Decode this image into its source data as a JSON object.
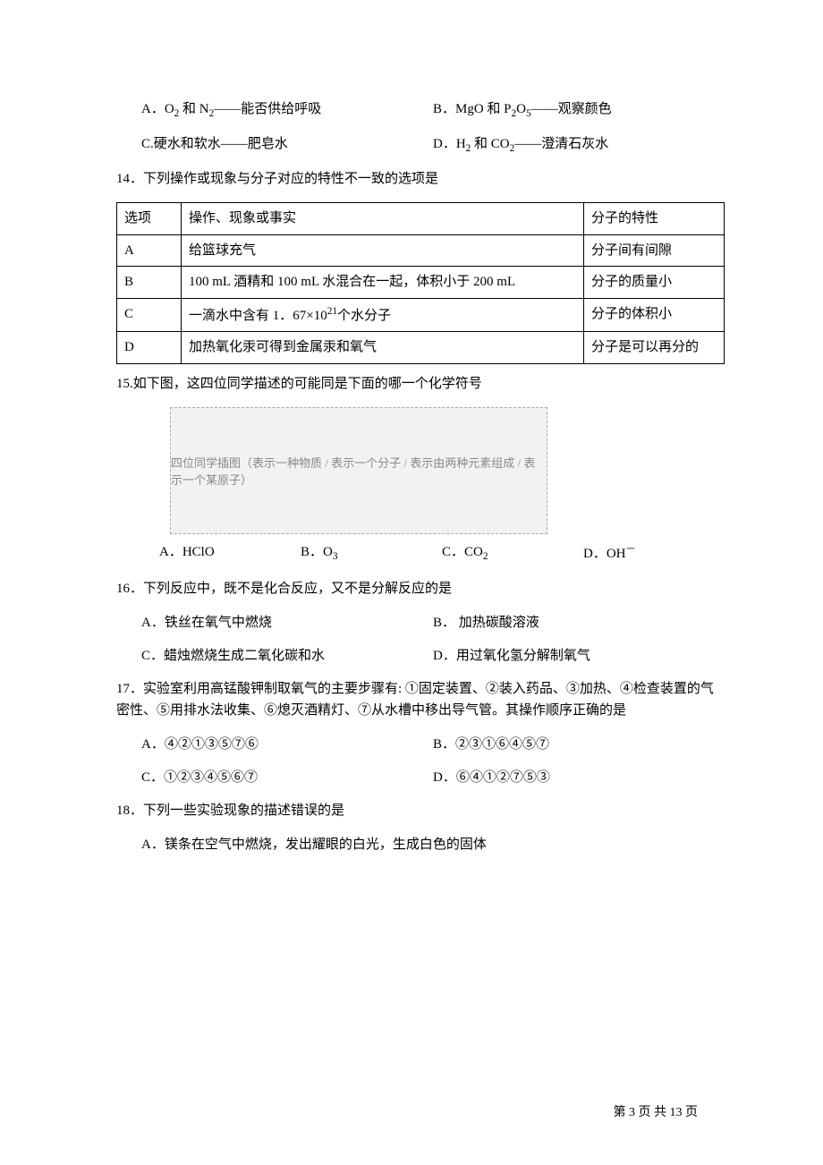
{
  "q13_opts": {
    "a_pre": "A．O",
    "a_post": " 和 N",
    "a_tail": "——能否供给呼吸",
    "b_pre": "B．MgO 和 P",
    "b_mid": "O",
    "b_tail": "——观察颜色",
    "c": "C.硬水和软水——肥皂水",
    "d_pre": "D．H",
    "d_mid": " 和 CO",
    "d_tail": "——澄清石灰水"
  },
  "q14": {
    "stem": "14．下列操作或现象与分子对应的特性不一致的选项是",
    "head": {
      "c1": "选项",
      "c2": "操作、现象或事实",
      "c3": "分子的特性"
    },
    "rows": [
      {
        "c1": "A",
        "c2": "给篮球充气",
        "c3": "分子间有间隙"
      },
      {
        "c1": "B",
        "c2_pre": "100 mL 酒精和 100 mL 水混合在一起，体积小于 200 mL",
        "c3": "分子的质量小"
      },
      {
        "c1": "C",
        "c2_pre": "一滴水中含有 1．67×10",
        "c2_sup": "21",
        "c2_post": "个水分子",
        "c3": "分子的体积小"
      },
      {
        "c1": "D",
        "c2": "加热氧化汞可得到金属汞和氧气",
        "c3": "分子是可以再分的"
      }
    ]
  },
  "q15": {
    "stem": "15.如下图，这四位同学描述的可能同是下面的哪一个化学符号",
    "img_alt": "四位同学插图（表示一种物质 / 表示一个分子 / 表示由两种元素组成 / 表示一个某原子）",
    "opts": {
      "a": "A．HClO",
      "b_pre": "B．O",
      "c_pre": "C．CO",
      "d_pre": "D．OH",
      "d_sup": "－"
    }
  },
  "q16": {
    "stem": "16．下列反应中，既不是化合反应，又不是分解反应的是",
    "a": "A．铁丝在氧气中燃烧",
    "b": "B． 加热碳酸溶液",
    "c": "C．蜡烛燃烧生成二氧化碳和水",
    "d": "D．用过氧化氢分解制氧气"
  },
  "q17": {
    "stem": "17．实验室利用高锰酸钾制取氧气的主要步骤有: ①固定装置、②装入药品、③加热、④检查装置的气密性、⑤用排水法收集、⑥熄灭酒精灯、⑦从水槽中移出导气管。其操作顺序正确的是",
    "a": "A．④②①③⑤⑦⑥",
    "b": "B．②③①⑥④⑤⑦",
    "c": "C．①②③④⑤⑥⑦",
    "d": "D．⑥④①②⑦⑤③"
  },
  "q18": {
    "stem": "18．下列一些实验现象的描述错误的是",
    "a": "A．镁条在空气中燃烧，发出耀眼的白光，生成白色的固体"
  },
  "footer": "第 3 页 共 13 页"
}
